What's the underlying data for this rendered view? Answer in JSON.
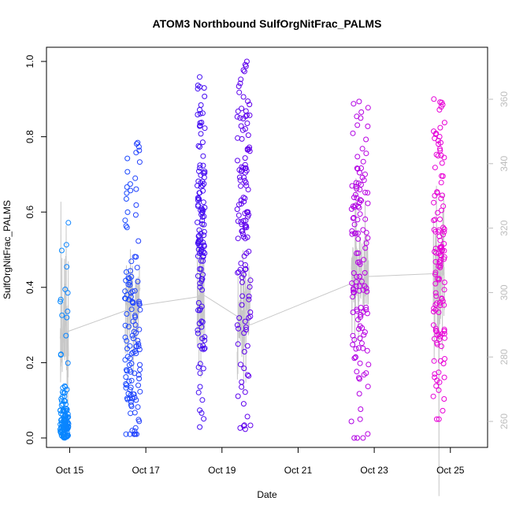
{
  "chart_data": {
    "type": "scatter",
    "title": "ATOM3 Northbound SulfOrgNitFrac_PALMS",
    "xlabel": "Date",
    "ylabel": "SulfOrgNitFrac_PALMS",
    "x_axis_kind": "date",
    "xlim": [
      "2017-10-14",
      "2017-10-26"
    ],
    "x_ticks": [
      {
        "date": "2017-10-15",
        "label": "Oct 15"
      },
      {
        "date": "2017-10-17",
        "label": "Oct 17"
      },
      {
        "date": "2017-10-19",
        "label": "Oct 19"
      },
      {
        "date": "2017-10-21",
        "label": "Oct 21"
      },
      {
        "date": "2017-10-23",
        "label": "Oct 23"
      },
      {
        "date": "2017-10-25",
        "label": "Oct 25"
      }
    ],
    "ylim": [
      0,
      1
    ],
    "y_ticks": [
      0.0,
      0.2,
      0.4,
      0.6,
      0.8,
      1.0
    ],
    "y_tick_labels": [
      "0.0",
      "0.2",
      "0.4",
      "0.6",
      "0.8",
      "1.0"
    ],
    "secondary_ylim": [
      250,
      370
    ],
    "secondary_y_ticks": [
      260,
      280,
      300,
      320,
      340,
      360
    ],
    "secondary_y_tick_labels": [
      "260",
      "280",
      "300",
      "320",
      "340",
      "360"
    ],
    "grid": false,
    "legend": "none",
    "point_color_scale": [
      "#00a5ff",
      "#1a4dff",
      "#4a00f0",
      "#8800e6",
      "#d200e0",
      "#ff00cc"
    ],
    "secondary_line_color": "#c8c8c8",
    "flight_segments": [
      {
        "date": "2017-10-14",
        "time_start": 0.75,
        "time_end": 0.97,
        "frac_median": 0.03,
        "frac_range": [
          0.0,
          0.67
        ],
        "theta_level_K": 288
      },
      {
        "date": "2017-10-16",
        "time_start": 0.45,
        "time_end": 0.85,
        "frac_median": 0.24,
        "frac_range": [
          0.01,
          0.8
        ],
        "theta_level_K": 296
      },
      {
        "date": "2017-10-18",
        "time_start": 0.35,
        "time_end": 0.55,
        "frac_median": 0.6,
        "frac_range": [
          0.0,
          1.0
        ],
        "theta_level_K": 299
      },
      {
        "date": "2017-10-19",
        "time_start": 0.4,
        "time_end": 0.75,
        "frac_median": 0.6,
        "frac_range": [
          0.01,
          1.0
        ],
        "theta_level_K": 290
      },
      {
        "date": "2017-10-22",
        "time_start": 0.4,
        "time_end": 0.85,
        "frac_median": 0.45,
        "frac_range": [
          0.0,
          0.91
        ],
        "theta_level_K": 305
      },
      {
        "date": "2017-10-24",
        "time_start": 0.55,
        "time_end": 0.85,
        "frac_median": 0.45,
        "frac_range": [
          0.05,
          0.9
        ],
        "theta_level_K": 306
      }
    ]
  }
}
